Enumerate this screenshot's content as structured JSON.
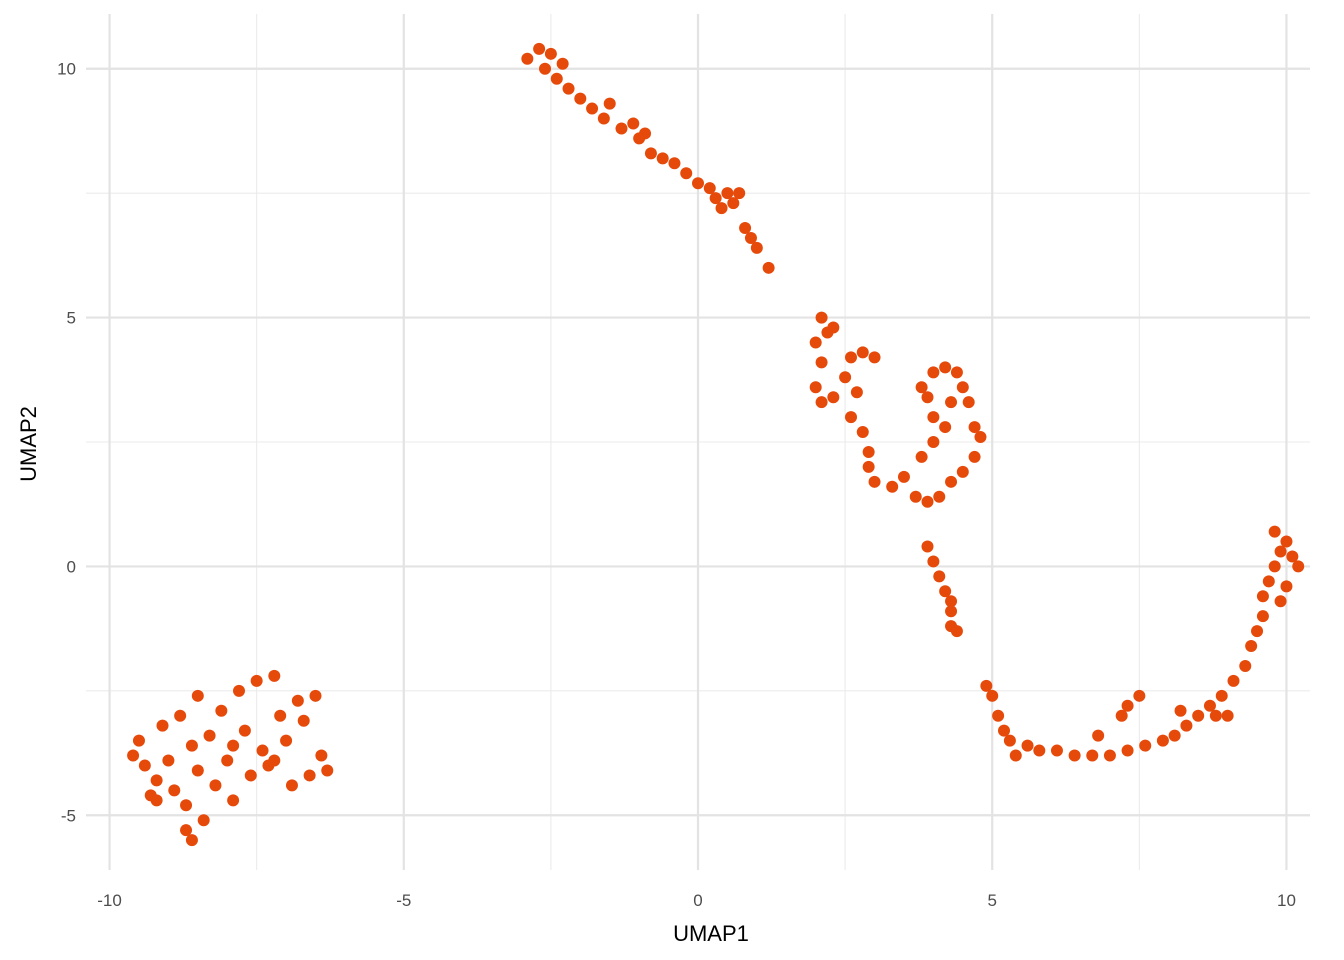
{
  "chart_data": {
    "type": "scatter",
    "title": "",
    "xlabel": "UMAP1",
    "ylabel": "UMAP2",
    "xlim": [
      -10.4,
      10.4
    ],
    "ylim": [
      -6.1,
      11.1
    ],
    "x_major_ticks": [
      -10,
      -5,
      0,
      5,
      10
    ],
    "x_tick_labels": [
      "-10",
      "-5",
      "0",
      "5",
      "10"
    ],
    "x_minor_ticks": [
      -7.5,
      -2.5,
      2.5,
      7.5
    ],
    "y_major_ticks": [
      -5,
      0,
      5,
      10
    ],
    "y_tick_labels": [
      "-5",
      "0",
      "5",
      "10"
    ],
    "y_minor_ticks": [
      -2.5,
      2.5,
      7.5
    ],
    "grid": true,
    "legend": "none",
    "point_color": "#E64A0B",
    "series": [
      {
        "points": [
          [
            -9.6,
            -3.8
          ],
          [
            -9.5,
            -3.5
          ],
          [
            -9.4,
            -4.0
          ],
          [
            -9.3,
            -4.6
          ],
          [
            -9.2,
            -4.3
          ],
          [
            -9.1,
            -3.2
          ],
          [
            -9.0,
            -3.9
          ],
          [
            -8.9,
            -4.5
          ],
          [
            -8.8,
            -3.0
          ],
          [
            -8.7,
            -4.8
          ],
          [
            -8.6,
            -3.6
          ],
          [
            -8.5,
            -2.6
          ],
          [
            -8.5,
            -4.1
          ],
          [
            -8.4,
            -5.1
          ],
          [
            -8.3,
            -3.4
          ],
          [
            -8.2,
            -4.4
          ],
          [
            -8.1,
            -2.9
          ],
          [
            -8.0,
            -3.9
          ],
          [
            -7.9,
            -4.7
          ],
          [
            -7.8,
            -2.5
          ],
          [
            -7.7,
            -3.3
          ],
          [
            -7.6,
            -4.2
          ],
          [
            -7.5,
            -2.3
          ],
          [
            -7.4,
            -3.7
          ],
          [
            -7.3,
            -4.0
          ],
          [
            -7.2,
            -2.2
          ],
          [
            -7.1,
            -3.0
          ],
          [
            -7.0,
            -3.5
          ],
          [
            -6.9,
            -4.4
          ],
          [
            -6.8,
            -2.7
          ],
          [
            -6.7,
            -3.1
          ],
          [
            -6.6,
            -4.2
          ],
          [
            -6.5,
            -2.6
          ],
          [
            -6.4,
            -3.8
          ],
          [
            -6.3,
            -4.1
          ],
          [
            -8.6,
            -5.5
          ],
          [
            -8.7,
            -5.3
          ],
          [
            -9.2,
            -4.7
          ],
          [
            -7.9,
            -3.6
          ],
          [
            -7.2,
            -3.9
          ],
          [
            -2.9,
            10.2
          ],
          [
            -2.7,
            10.4
          ],
          [
            -2.5,
            10.3
          ],
          [
            -2.3,
            10.1
          ],
          [
            -2.6,
            10.0
          ],
          [
            -2.4,
            9.8
          ],
          [
            -2.2,
            9.6
          ],
          [
            -2.0,
            9.4
          ],
          [
            -1.8,
            9.2
          ],
          [
            -1.6,
            9.0
          ],
          [
            -1.5,
            9.3
          ],
          [
            -1.3,
            8.8
          ],
          [
            -1.1,
            8.9
          ],
          [
            -1.0,
            8.6
          ],
          [
            -0.9,
            8.7
          ],
          [
            -0.8,
            8.3
          ],
          [
            -0.6,
            8.2
          ],
          [
            -0.4,
            8.1
          ],
          [
            -0.2,
            7.9
          ],
          [
            0.0,
            7.7
          ],
          [
            0.2,
            7.6
          ],
          [
            0.3,
            7.4
          ],
          [
            0.4,
            7.2
          ],
          [
            0.5,
            7.5
          ],
          [
            0.6,
            7.3
          ],
          [
            0.7,
            7.5
          ],
          [
            0.8,
            6.8
          ],
          [
            0.9,
            6.6
          ],
          [
            1.0,
            6.4
          ],
          [
            1.2,
            6.0
          ],
          [
            2.1,
            5.0
          ],
          [
            2.2,
            4.7
          ],
          [
            2.3,
            4.8
          ],
          [
            2.0,
            4.5
          ],
          [
            2.1,
            4.1
          ],
          [
            2.0,
            3.6
          ],
          [
            2.1,
            3.3
          ],
          [
            2.3,
            3.4
          ],
          [
            2.5,
            3.8
          ],
          [
            2.6,
            4.2
          ],
          [
            2.8,
            4.3
          ],
          [
            3.0,
            4.2
          ],
          [
            2.7,
            3.5
          ],
          [
            2.6,
            3.0
          ],
          [
            2.8,
            2.7
          ],
          [
            2.9,
            2.3
          ],
          [
            2.9,
            2.0
          ],
          [
            3.0,
            1.7
          ],
          [
            3.3,
            1.6
          ],
          [
            3.5,
            1.8
          ],
          [
            3.7,
            1.4
          ],
          [
            3.9,
            1.3
          ],
          [
            4.1,
            1.4
          ],
          [
            3.8,
            2.2
          ],
          [
            4.0,
            2.5
          ],
          [
            4.2,
            2.8
          ],
          [
            3.9,
            3.4
          ],
          [
            4.0,
            3.9
          ],
          [
            4.2,
            4.0
          ],
          [
            4.4,
            3.9
          ],
          [
            4.5,
            3.6
          ],
          [
            4.6,
            3.3
          ],
          [
            4.7,
            2.8
          ],
          [
            4.8,
            2.6
          ],
          [
            4.7,
            2.2
          ],
          [
            4.5,
            1.9
          ],
          [
            4.3,
            1.7
          ],
          [
            4.0,
            3.0
          ],
          [
            3.8,
            3.6
          ],
          [
            4.3,
            3.3
          ],
          [
            3.9,
            0.4
          ],
          [
            4.0,
            0.1
          ],
          [
            4.1,
            -0.2
          ],
          [
            4.2,
            -0.5
          ],
          [
            4.3,
            -0.7
          ],
          [
            4.3,
            -0.9
          ],
          [
            4.3,
            -1.2
          ],
          [
            4.4,
            -1.3
          ],
          [
            4.9,
            -2.4
          ],
          [
            5.0,
            -2.6
          ],
          [
            5.1,
            -3.0
          ],
          [
            5.2,
            -3.3
          ],
          [
            5.3,
            -3.5
          ],
          [
            5.4,
            -3.8
          ],
          [
            5.6,
            -3.6
          ],
          [
            5.8,
            -3.7
          ],
          [
            6.1,
            -3.7
          ],
          [
            6.4,
            -3.8
          ],
          [
            6.7,
            -3.8
          ],
          [
            7.0,
            -3.8
          ],
          [
            7.3,
            -3.7
          ],
          [
            7.6,
            -3.6
          ],
          [
            7.9,
            -3.5
          ],
          [
            8.1,
            -3.4
          ],
          [
            8.3,
            -3.2
          ],
          [
            8.5,
            -3.0
          ],
          [
            8.7,
            -2.8
          ],
          [
            8.9,
            -2.6
          ],
          [
            9.1,
            -2.3
          ],
          [
            9.3,
            -2.0
          ],
          [
            9.4,
            -1.6
          ],
          [
            9.5,
            -1.3
          ],
          [
            9.6,
            -1.0
          ],
          [
            9.6,
            -0.6
          ],
          [
            9.7,
            -0.3
          ],
          [
            9.8,
            0.0
          ],
          [
            9.9,
            0.3
          ],
          [
            10.0,
            0.5
          ],
          [
            10.1,
            0.2
          ],
          [
            10.2,
            0.0
          ],
          [
            10.0,
            -0.4
          ],
          [
            9.9,
            -0.7
          ],
          [
            9.8,
            0.7
          ],
          [
            7.5,
            -2.6
          ],
          [
            7.3,
            -2.8
          ],
          [
            7.2,
            -3.0
          ],
          [
            8.2,
            -2.9
          ],
          [
            6.8,
            -3.4
          ],
          [
            8.8,
            -3.0
          ],
          [
            9.0,
            -3.0
          ]
        ]
      }
    ]
  }
}
